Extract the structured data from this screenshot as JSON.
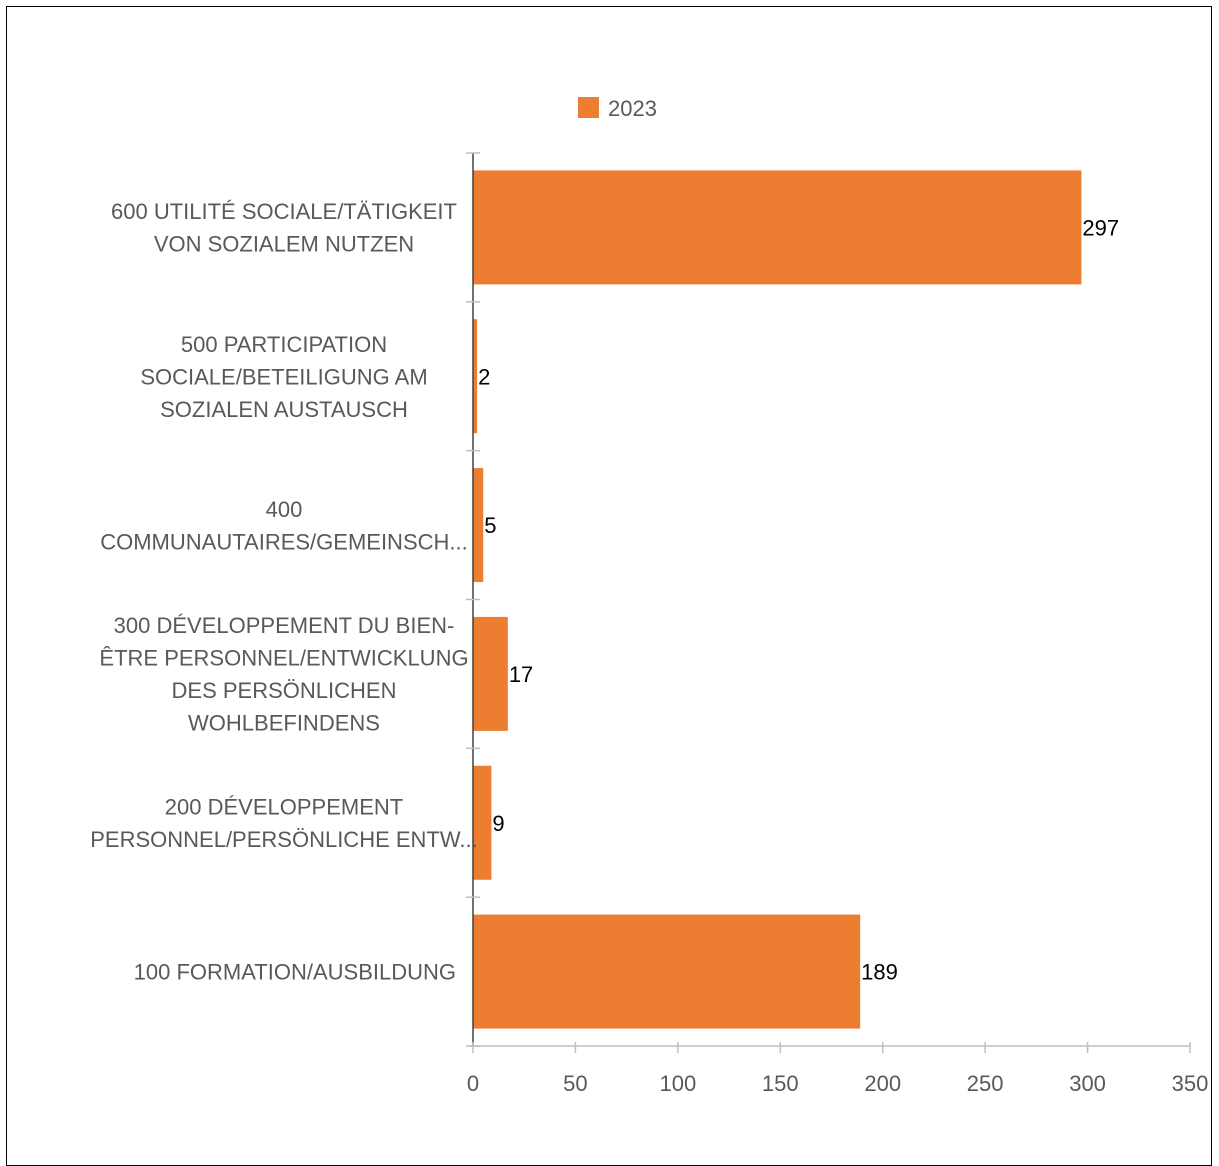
{
  "chart_data": {
    "type": "bar",
    "orientation": "horizontal",
    "title": "",
    "xlabel": "",
    "ylabel": "",
    "categories": [
      "600 UTILITÉ SOCIALE/TÄTIGKEIT VON SOZIALEM NUTZEN",
      "500 PARTICIPATION SOCIALE/BETEILIGUNG AM SOZIALEN AUSTAUSCH",
      "400 COMMUNAUTAIRES/GEMEINSCH...",
      "300 DÉVELOPPEMENT DU BIEN-ÊTRE PERSONNEL/ENTWICKLUNG DES PERSÖNLICHEN WOHLBEFINDENS",
      "200 DÉVELOPPEMENT PERSONNEL/PERSÖNLICHE ENTW...",
      "100 FORMATION/AUSBILDUNG"
    ],
    "category_label_lines": [
      [
        "600 UTILITÉ SOCIALE/TÄTIGKEIT",
        "VON SOZIALEM NUTZEN"
      ],
      [
        "500 PARTICIPATION",
        "SOCIALE/BETEILIGUNG AM",
        "SOZIALEN AUSTAUSCH"
      ],
      [
        "400",
        "COMMUNAUTAIRES/GEMEINSCH..."
      ],
      [
        "300 DÉVELOPPEMENT DU BIEN-",
        "ÊTRE PERSONNEL/ENTWICKLUNG",
        "DES PERSÖNLICHEN",
        "WOHLBEFINDENS"
      ],
      [
        "200 DÉVELOPPEMENT",
        "PERSONNEL/PERSÖNLICHE ENTW..."
      ],
      [
        "100 FORMATION/AUSBILDUNG"
      ]
    ],
    "series": [
      {
        "name": "2023",
        "values": [
          297,
          2,
          5,
          17,
          9,
          189
        ],
        "color": "#ED7D31"
      }
    ],
    "xlim": [
      0,
      350
    ],
    "xticks": [
      0,
      50,
      100,
      150,
      200,
      250,
      300,
      350
    ],
    "grid": false,
    "legend": "top",
    "data_labels": true
  }
}
